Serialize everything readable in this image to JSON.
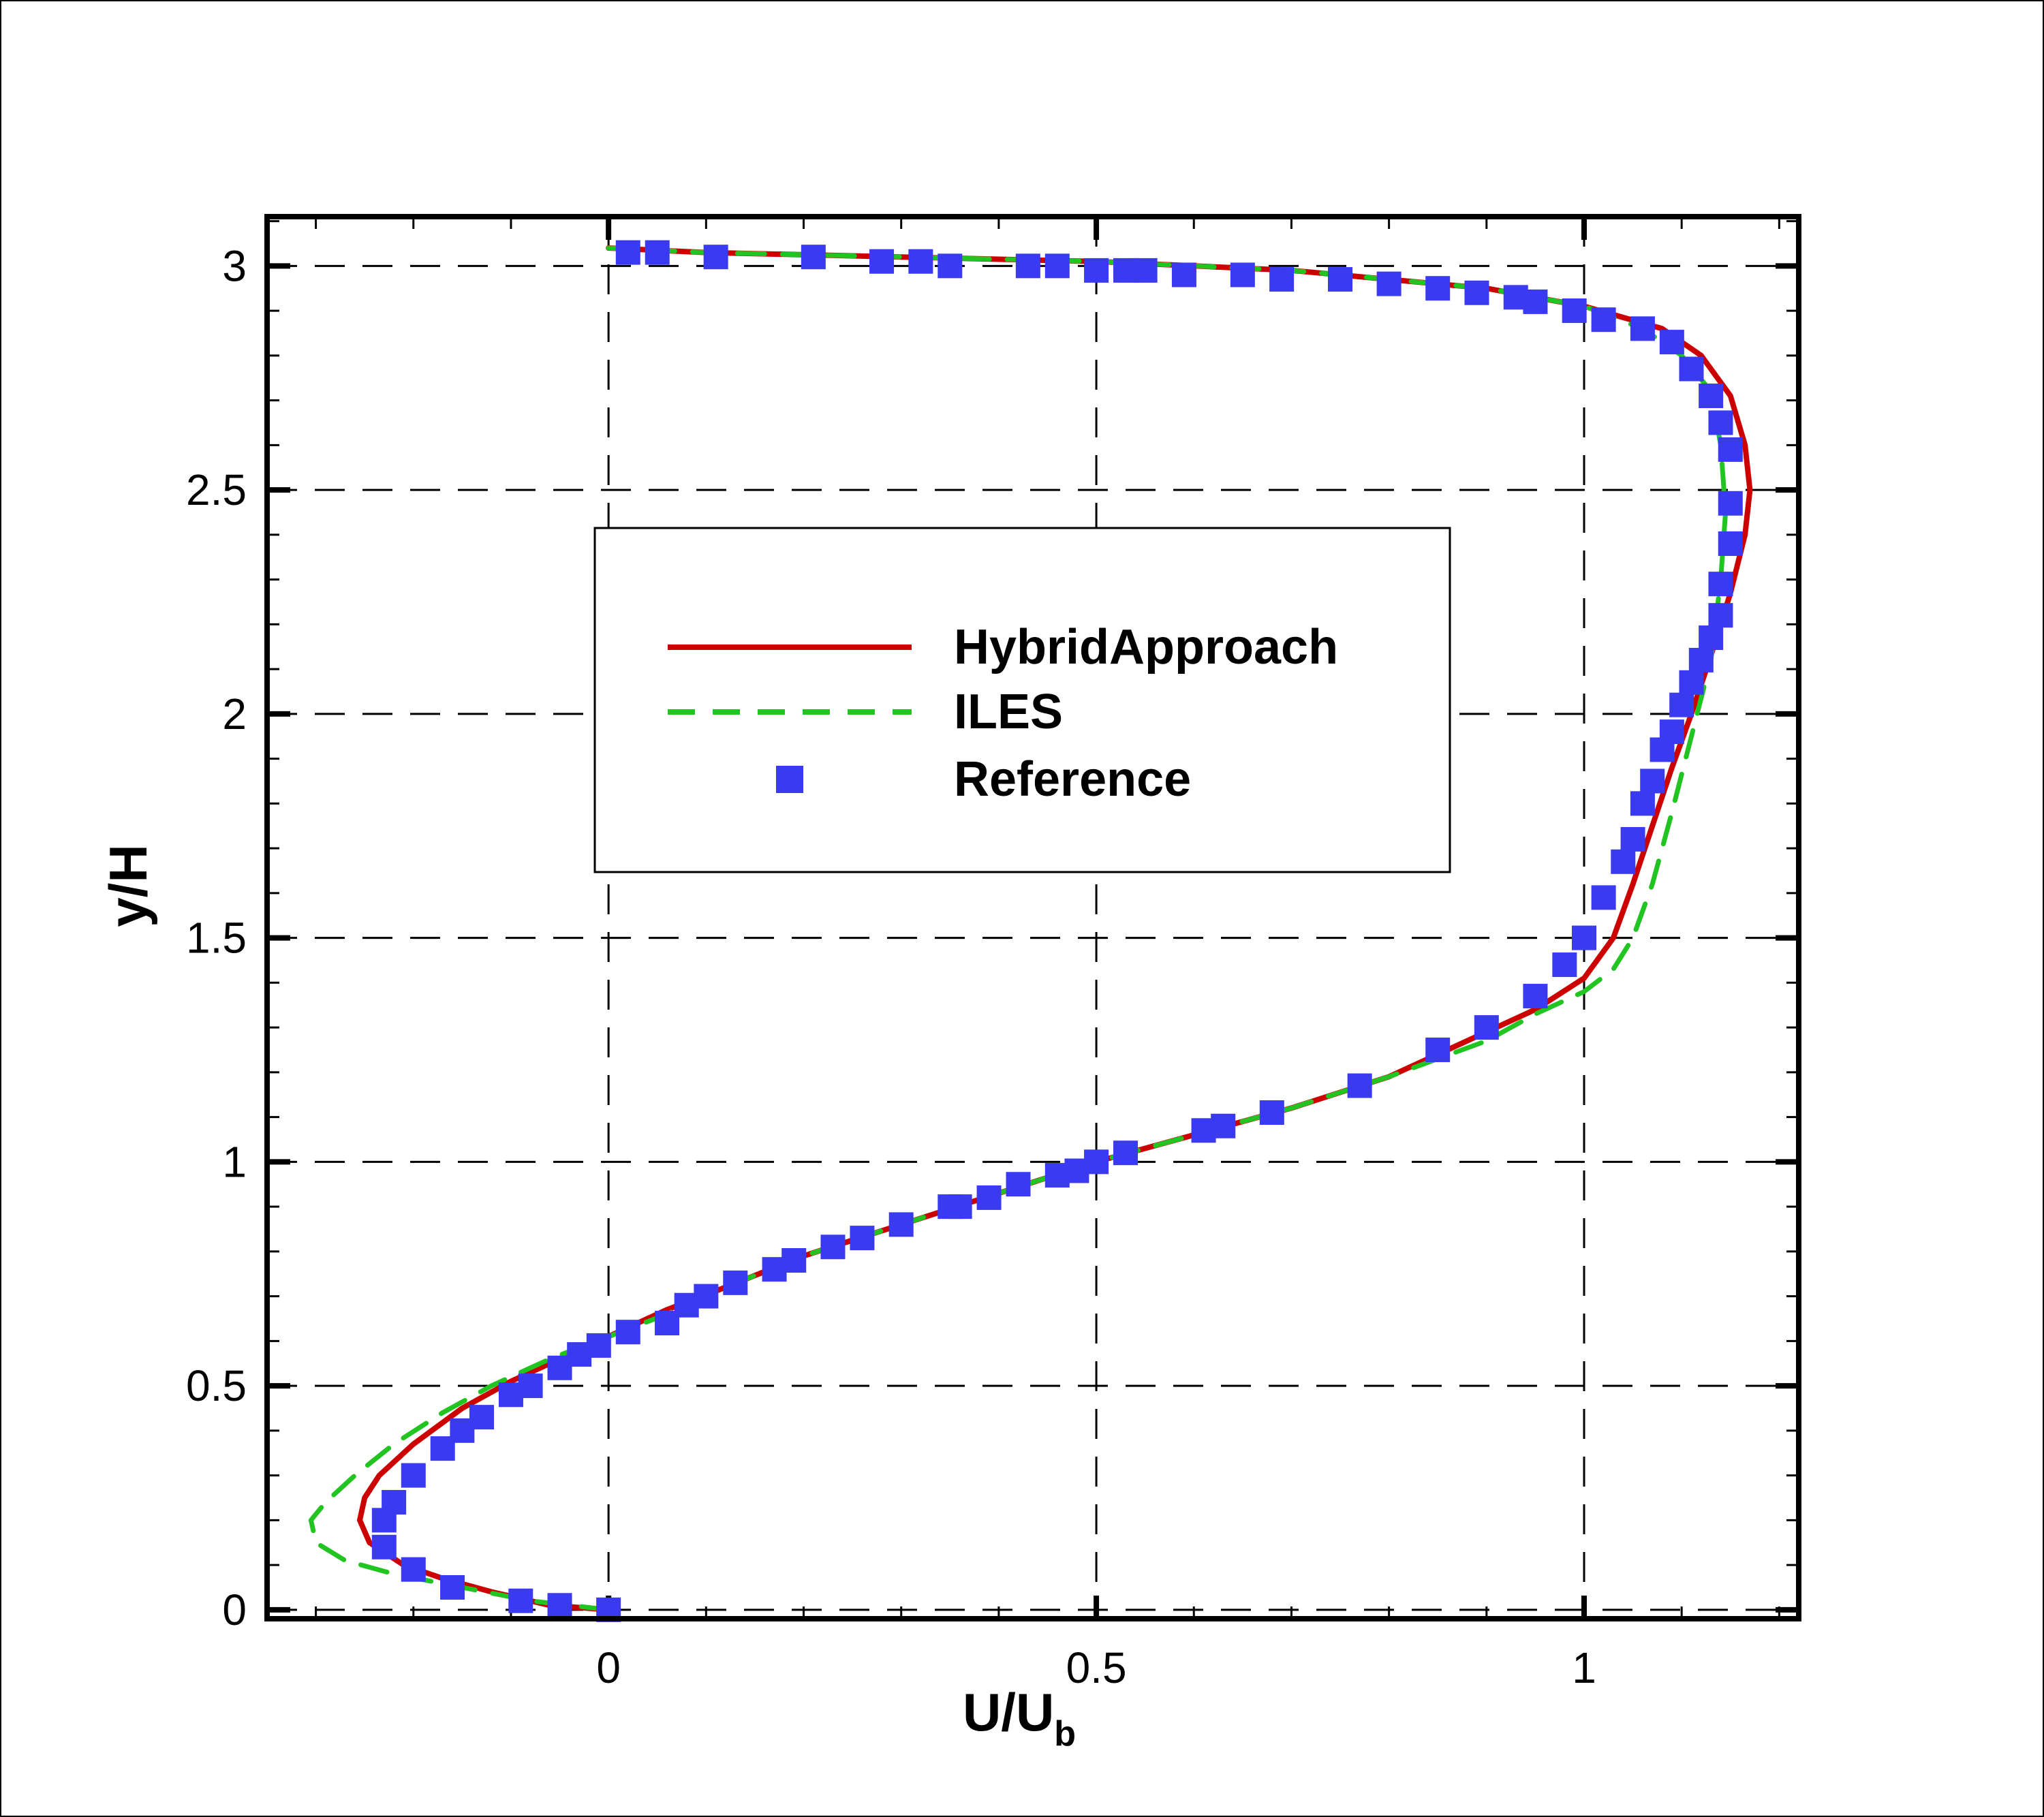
{
  "chart_data": {
    "type": "line",
    "xlabel": "U/U",
    "xlabel_sub": "b",
    "ylabel": "y/H",
    "xlim": [
      -0.35,
      1.22
    ],
    "ylim": [
      -0.02,
      3.11
    ],
    "xticks": [
      0,
      0.5,
      1
    ],
    "xtick_labels": [
      "0",
      "0.5",
      "1"
    ],
    "yticks": [
      0,
      0.5,
      1,
      1.5,
      2,
      2.5,
      3
    ],
    "ytick_labels": [
      "0",
      "0.5",
      "1",
      "1.5",
      "2",
      "2.5",
      "3"
    ],
    "grid": "dashed at major ticks",
    "legend_position": "center",
    "colors": {
      "hybrid": "#cc0000",
      "iles": "#22c422",
      "reference": "#3a3af0"
    },
    "series": [
      {
        "name": "HybridApproach",
        "style": "solid",
        "x": [
          0.0,
          -0.06,
          -0.12,
          -0.17,
          -0.21,
          -0.245,
          -0.255,
          -0.25,
          -0.235,
          -0.2,
          -0.15,
          -0.1,
          -0.05,
          0.0,
          0.06,
          0.12,
          0.2,
          0.3,
          0.4,
          0.5,
          0.6,
          0.7,
          0.8,
          0.9,
          0.95,
          1.0,
          1.03,
          1.05,
          1.07,
          1.09,
          1.11,
          1.13,
          1.15,
          1.165,
          1.17,
          1.165,
          1.15,
          1.12,
          1.08,
          1.0,
          0.9,
          0.8,
          0.7,
          0.6,
          0.5,
          0.4,
          0.3,
          0.2,
          0.1,
          0.0
        ],
        "y": [
          0.0,
          0.01,
          0.04,
          0.07,
          0.1,
          0.15,
          0.2,
          0.25,
          0.3,
          0.37,
          0.45,
          0.51,
          0.56,
          0.61,
          0.67,
          0.72,
          0.79,
          0.86,
          0.93,
          1.0,
          1.06,
          1.12,
          1.19,
          1.29,
          1.34,
          1.41,
          1.5,
          1.62,
          1.75,
          1.88,
          2.0,
          2.13,
          2.27,
          2.4,
          2.5,
          2.6,
          2.71,
          2.8,
          2.86,
          2.91,
          2.95,
          2.97,
          2.99,
          3.0,
          3.01,
          3.015,
          3.02,
          3.025,
          3.03,
          3.04
        ]
      },
      {
        "name": "ILES",
        "style": "dashed",
        "x": [
          0.0,
          -0.08,
          -0.15,
          -0.22,
          -0.27,
          -0.3,
          -0.305,
          -0.29,
          -0.26,
          -0.22,
          -0.17,
          -0.12,
          -0.06,
          0.0,
          0.06,
          0.12,
          0.2,
          0.3,
          0.4,
          0.5,
          0.6,
          0.7,
          0.8,
          0.9,
          0.95,
          1.0,
          1.03,
          1.05,
          1.07,
          1.09,
          1.11,
          1.13,
          1.14,
          1.145,
          1.14,
          1.13,
          1.1,
          1.06,
          1.0,
          0.9,
          0.8,
          0.7,
          0.6,
          0.5,
          0.4,
          0.3,
          0.2,
          0.1,
          0.0
        ],
        "y": [
          0.0,
          0.02,
          0.05,
          0.08,
          0.11,
          0.15,
          0.2,
          0.24,
          0.3,
          0.37,
          0.44,
          0.5,
          0.56,
          0.61,
          0.66,
          0.72,
          0.79,
          0.86,
          0.93,
          1.0,
          1.06,
          1.12,
          1.19,
          1.27,
          1.33,
          1.38,
          1.43,
          1.5,
          1.62,
          1.78,
          1.95,
          2.12,
          2.3,
          2.45,
          2.6,
          2.72,
          2.8,
          2.86,
          2.91,
          2.95,
          2.97,
          2.99,
          3.0,
          3.01,
          3.015,
          3.02,
          3.025,
          3.03,
          3.04
        ]
      },
      {
        "name": "Reference",
        "style": "markers",
        "x": [
          0.0,
          -0.05,
          -0.09,
          -0.16,
          -0.2,
          -0.23,
          -0.23,
          -0.22,
          -0.2,
          -0.17,
          -0.15,
          -0.13,
          -0.1,
          -0.08,
          -0.05,
          -0.03,
          -0.01,
          0.02,
          0.06,
          0.08,
          0.1,
          0.13,
          0.17,
          0.19,
          0.23,
          0.26,
          0.3,
          0.35,
          0.36,
          0.39,
          0.42,
          0.46,
          0.48,
          0.5,
          0.53,
          0.61,
          0.63,
          0.68,
          0.77,
          0.85,
          0.9,
          0.95,
          0.98,
          1.0,
          1.02,
          1.04,
          1.05,
          1.06,
          1.07,
          1.08,
          1.09,
          1.1,
          1.11,
          1.12,
          1.13,
          1.14,
          1.14,
          1.15,
          1.15,
          1.15,
          1.14,
          1.13,
          1.11,
          1.09,
          1.06,
          1.02,
          0.99,
          0.95,
          0.93,
          0.89,
          0.85,
          0.8,
          0.75,
          0.69,
          0.65,
          0.59,
          0.55,
          0.53,
          0.5,
          0.46,
          0.43,
          0.35,
          0.32,
          0.28,
          0.21,
          0.11,
          0.05,
          0.02
        ],
        "y": [
          0.0,
          0.01,
          0.02,
          0.05,
          0.09,
          0.14,
          0.2,
          0.24,
          0.3,
          0.36,
          0.4,
          0.43,
          0.48,
          0.5,
          0.54,
          0.57,
          0.59,
          0.62,
          0.64,
          0.68,
          0.7,
          0.73,
          0.76,
          0.78,
          0.81,
          0.83,
          0.86,
          0.9,
          0.9,
          0.92,
          0.95,
          0.97,
          0.98,
          1.0,
          1.02,
          1.07,
          1.08,
          1.11,
          1.17,
          1.25,
          1.3,
          1.37,
          1.44,
          1.5,
          1.59,
          1.67,
          1.72,
          1.8,
          1.85,
          1.92,
          1.96,
          2.02,
          2.07,
          2.12,
          2.17,
          2.22,
          2.29,
          2.38,
          2.47,
          2.59,
          2.65,
          2.71,
          2.77,
          2.83,
          2.86,
          2.88,
          2.9,
          2.92,
          2.93,
          2.94,
          2.95,
          2.96,
          2.97,
          2.97,
          2.98,
          2.98,
          2.99,
          2.99,
          2.99,
          3.0,
          3.0,
          3.0,
          3.01,
          3.01,
          3.02,
          3.02,
          3.03,
          3.03
        ]
      }
    ]
  }
}
